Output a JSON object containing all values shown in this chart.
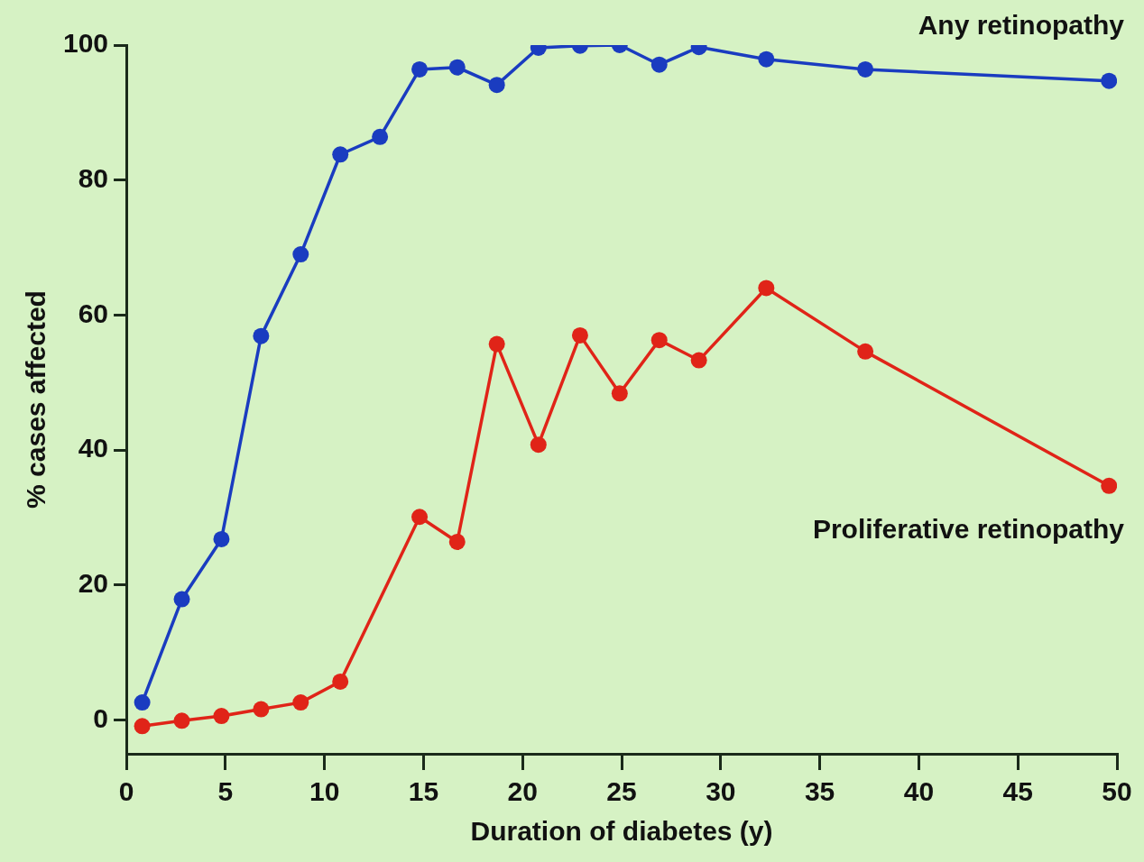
{
  "chart_data": {
    "type": "line",
    "xlabel": "Duration of diabetes (y)",
    "ylabel": "% cases affected",
    "xlim": [
      0,
      50
    ],
    "xticks": [
      0,
      5,
      10,
      15,
      20,
      25,
      30,
      35,
      40,
      45,
      50
    ],
    "ylim": [
      -5,
      100
    ],
    "yticks": [
      0,
      20,
      40,
      60,
      80,
      100
    ],
    "grid": false,
    "legend": false,
    "marker": "circle",
    "line_style": "solid",
    "series": [
      {
        "name": "Any retinopathy",
        "color": "#1a3cc0",
        "x": [
          0.8,
          2.8,
          4.8,
          6.8,
          8.8,
          10.8,
          12.8,
          14.8,
          16.7,
          18.7,
          20.8,
          22.9,
          24.9,
          26.9,
          28.9,
          32.3,
          37.3,
          49.6
        ],
        "values": [
          2.6,
          17.9,
          26.8,
          56.9,
          69,
          83.8,
          86.4,
          96.4,
          96.7,
          94.1,
          99.6,
          99.9,
          100,
          97.1,
          99.7,
          97.9,
          96.4,
          94.7
        ]
      },
      {
        "name": "Proliferative retinopathy",
        "color": "#e02418",
        "x": [
          0.8,
          2.8,
          4.8,
          6.8,
          8.8,
          10.8,
          14.8,
          16.7,
          18.7,
          20.8,
          22.9,
          24.9,
          26.9,
          28.9,
          32.3,
          37.3,
          49.6
        ],
        "values": [
          -0.9,
          -0.1,
          0.6,
          1.6,
          2.6,
          5.7,
          30.1,
          26.4,
          55.7,
          40.8,
          57,
          48.4,
          56.3,
          53.3,
          64,
          54.6,
          34.7
        ]
      }
    ]
  }
}
